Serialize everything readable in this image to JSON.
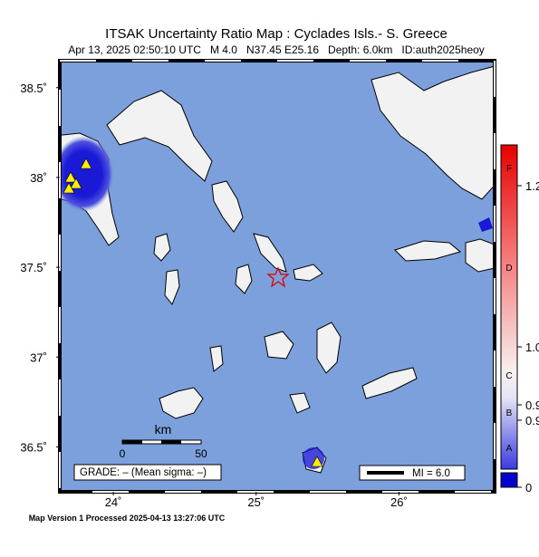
{
  "header": {
    "title": "ITSAK Uncertainty Ratio Map : Cyclades Isls.- S. Greece",
    "subtitle": "Apr 13, 2025 02:50:10 UTC   M 4.0   N37.45 E25.16   Depth: 6.0km   ID:auth2025heoy"
  },
  "map": {
    "lon_range": [
      23.625,
      26.67
    ],
    "lat_range": [
      36.25,
      38.65
    ],
    "lon_ticks": [
      {
        "value": 24,
        "label": "24˚"
      },
      {
        "value": 25,
        "label": "25˚"
      },
      {
        "value": 26,
        "label": "26˚"
      }
    ],
    "lat_ticks": [
      {
        "value": 38.5,
        "label": "38.5˚"
      },
      {
        "value": 38,
        "label": "38˚"
      },
      {
        "value": 37.5,
        "label": "37.5˚"
      },
      {
        "value": 37,
        "label": "37˚"
      },
      {
        "value": 36.5,
        "label": "36.5˚"
      }
    ]
  },
  "scale_bar": {
    "unit": "km",
    "labels": [
      "0",
      "50"
    ]
  },
  "grade_box": "GRADE: – (Mean sigma: –)",
  "legend": "MI = 6.0",
  "colorbar": {
    "grades": [
      "F",
      "D",
      "C",
      "B",
      "A"
    ],
    "labels": [
      "1.2",
      "1.0",
      "0.9",
      "0.9",
      "0"
    ]
  },
  "footer": "Map Version 1 Processed 2025-04-13 13:27:06 UTC"
}
